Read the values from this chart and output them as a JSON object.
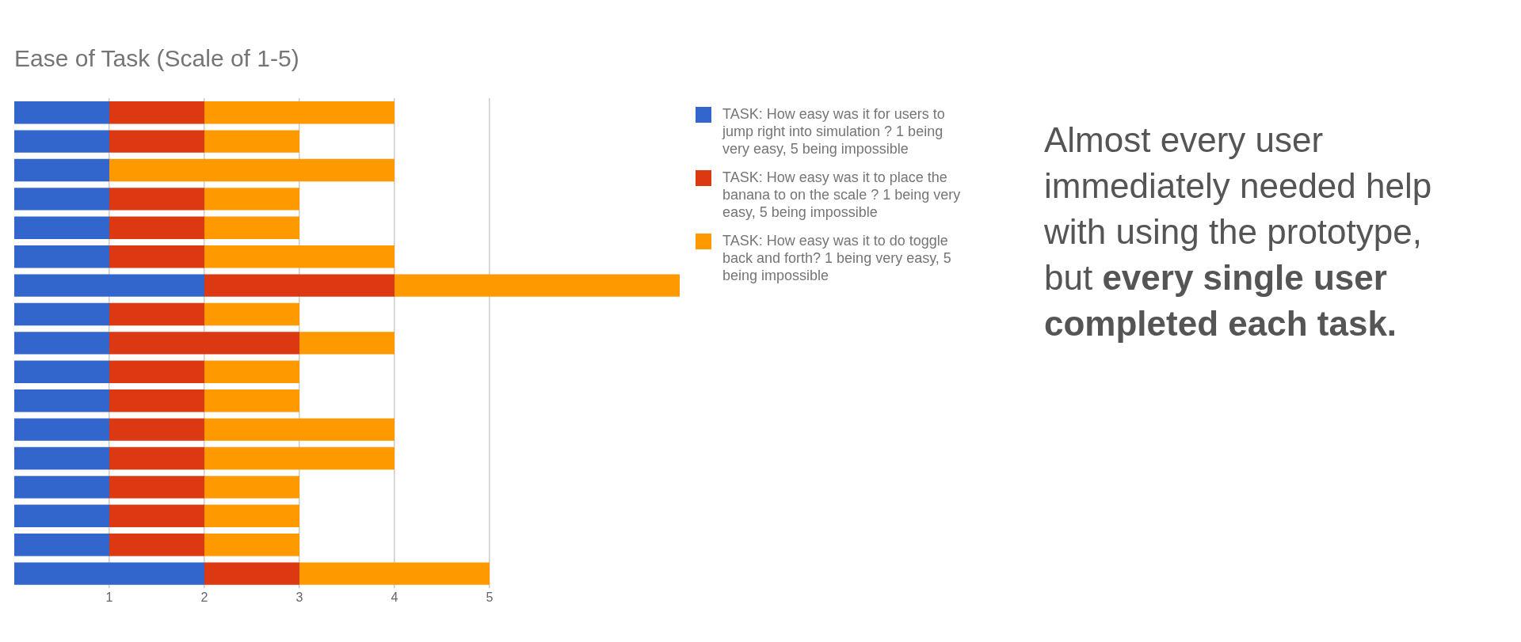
{
  "chart_data": {
    "type": "bar",
    "orientation": "horizontal",
    "stacked": true,
    "title": "Ease of Task (Scale of 1-5)",
    "categories": [
      null,
      null,
      null,
      null,
      null,
      null,
      null,
      null,
      null,
      null,
      null,
      null,
      null,
      null,
      null,
      null,
      null
    ],
    "series": [
      {
        "name": "TASK: How easy was it for users to jump right into simulation ? 1 being very easy, 5 being impossible",
        "color": "#3366cc",
        "values": [
          1,
          1,
          1,
          1,
          1,
          1,
          2,
          1,
          1,
          1,
          1,
          1,
          1,
          1,
          1,
          1,
          2
        ]
      },
      {
        "name": "TASK: How easy was it to place the banana to on the scale ? 1 being very easy, 5 being impossible",
        "color": "#dc3912",
        "values": [
          1,
          1,
          0,
          1,
          1,
          1,
          2,
          1,
          2,
          1,
          1,
          1,
          1,
          1,
          1,
          1,
          1
        ]
      },
      {
        "name": "TASK: How easy was it to do toggle back and forth? 1 being very easy, 5 being impossible",
        "color": "#ff9900",
        "values": [
          2,
          1,
          3,
          1,
          1,
          2,
          3,
          1,
          1,
          1,
          1,
          2,
          2,
          1,
          1,
          1,
          2
        ]
      }
    ],
    "xlim": [
      0,
      7
    ],
    "xticks": [
      1,
      2,
      3,
      4,
      5
    ],
    "grid": "x",
    "legend": "right",
    "annotations": [
      "Almost every user immediately needed help with using the prototype, but",
      "every single user completed each task."
    ]
  }
}
